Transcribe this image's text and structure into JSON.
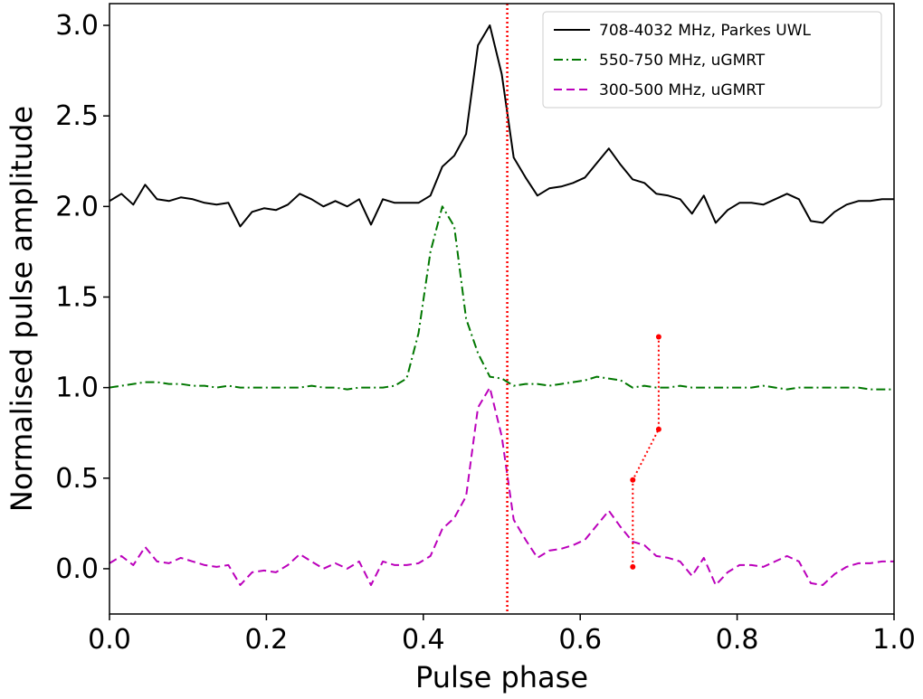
{
  "chart_data": {
    "type": "line",
    "title": "",
    "xlabel": "Pulse phase",
    "ylabel": "Normalised pulse amplitude",
    "xlim": [
      0.0,
      1.0
    ],
    "ylim": [
      -0.25,
      3.12
    ],
    "xticks": [
      0.0,
      0.2,
      0.4,
      0.6,
      0.8,
      1.0
    ],
    "xtick_labels": [
      "0.0",
      "0.2",
      "0.4",
      "0.6",
      "0.8",
      "1.0"
    ],
    "yticks": [
      0.0,
      0.5,
      1.0,
      1.5,
      2.0,
      2.5,
      3.0
    ],
    "ytick_labels": [
      "0.0",
      "0.5",
      "1.0",
      "1.5",
      "2.0",
      "2.5",
      "3.0"
    ],
    "grid": false,
    "legend_position": "top-right",
    "x": [
      0.0,
      0.0152,
      0.0303,
      0.0455,
      0.0606,
      0.0758,
      0.0909,
      0.1061,
      0.1212,
      0.1364,
      0.1515,
      0.1667,
      0.1818,
      0.197,
      0.2121,
      0.2273,
      0.2424,
      0.2576,
      0.2727,
      0.2879,
      0.303,
      0.3182,
      0.3333,
      0.3485,
      0.3636,
      0.3788,
      0.3939,
      0.4091,
      0.4242,
      0.4394,
      0.4545,
      0.4697,
      0.4848,
      0.5,
      0.5152,
      0.5303,
      0.5455,
      0.5606,
      0.5758,
      0.5909,
      0.6061,
      0.6212,
      0.6364,
      0.6515,
      0.6667,
      0.6818,
      0.697,
      0.7121,
      0.7273,
      0.7424,
      0.7576,
      0.7727,
      0.7879,
      0.803,
      0.8182,
      0.8333,
      0.8485,
      0.8636,
      0.8788,
      0.8939,
      0.9091,
      0.9242,
      0.9394,
      0.9545,
      0.9697,
      0.9848,
      1.0
    ],
    "series": [
      {
        "name": "708-4032 MHz, Parkes UWL",
        "color": "#000000",
        "style": "solid",
        "values": [
          2.03,
          2.07,
          2.01,
          2.12,
          2.04,
          2.03,
          2.05,
          2.04,
          2.02,
          2.01,
          2.02,
          1.89,
          1.97,
          1.99,
          1.98,
          2.01,
          2.07,
          2.04,
          2.0,
          2.03,
          2.0,
          2.04,
          1.9,
          2.04,
          2.02,
          2.02,
          2.02,
          2.06,
          2.22,
          2.28,
          2.4,
          2.89,
          3.0,
          2.73,
          2.27,
          2.16,
          2.06,
          2.1,
          2.11,
          2.13,
          2.16,
          2.24,
          2.32,
          2.23,
          2.15,
          2.13,
          2.07,
          2.06,
          2.04,
          1.96,
          2.06,
          1.91,
          1.98,
          2.02,
          2.02,
          2.01,
          2.04,
          2.07,
          2.04,
          1.92,
          1.91,
          1.97,
          2.01,
          2.03,
          2.03,
          2.04,
          2.04
        ]
      },
      {
        "name": "550-750 MHz, uGMRT",
        "color": "#007700",
        "style": "dashdot",
        "values": [
          1.0,
          1.01,
          1.02,
          1.03,
          1.03,
          1.02,
          1.02,
          1.01,
          1.01,
          1.0,
          1.01,
          1.0,
          1.0,
          1.0,
          1.0,
          1.0,
          1.0,
          1.01,
          1.0,
          1.0,
          0.99,
          1.0,
          1.0,
          1.0,
          1.01,
          1.05,
          1.3,
          1.75,
          2.0,
          1.89,
          1.38,
          1.19,
          1.06,
          1.05,
          1.01,
          1.02,
          1.02,
          1.01,
          1.02,
          1.03,
          1.04,
          1.06,
          1.05,
          1.04,
          1.0,
          1.01,
          1.0,
          1.0,
          1.01,
          1.0,
          1.0,
          1.0,
          1.0,
          1.0,
          1.0,
          1.01,
          1.0,
          0.99,
          1.0,
          1.0,
          1.0,
          1.0,
          1.0,
          1.0,
          0.99,
          0.99,
          0.99
        ]
      },
      {
        "name": "300-500 MHz, uGMRT",
        "color": "#bb00bb",
        "style": "dashed",
        "values": [
          0.03,
          0.07,
          0.02,
          0.12,
          0.04,
          0.03,
          0.06,
          0.04,
          0.02,
          0.01,
          0.02,
          -0.09,
          -0.02,
          -0.01,
          -0.02,
          0.02,
          0.08,
          0.04,
          0.0,
          0.03,
          0.0,
          0.04,
          -0.09,
          0.04,
          0.02,
          0.02,
          0.03,
          0.07,
          0.22,
          0.28,
          0.4,
          0.89,
          1.0,
          0.73,
          0.27,
          0.16,
          0.06,
          0.1,
          0.11,
          0.13,
          0.16,
          0.24,
          0.32,
          0.23,
          0.15,
          0.13,
          0.07,
          0.06,
          0.04,
          -0.04,
          0.06,
          -0.09,
          -0.02,
          0.02,
          0.02,
          0.01,
          0.04,
          0.07,
          0.04,
          -0.08,
          -0.09,
          -0.03,
          0.01,
          0.03,
          0.03,
          0.04,
          0.04
        ]
      }
    ],
    "annotations": {
      "vertical_line": {
        "x": 0.507,
        "color": "#ff0000",
        "style": "dotted"
      },
      "red_path": {
        "color": "#ff0000",
        "style": "dotted",
        "points": [
          [
            0.667,
            0.01
          ],
          [
            0.667,
            0.49
          ],
          [
            0.7,
            0.77
          ],
          [
            0.7,
            1.28
          ]
        ]
      }
    }
  }
}
